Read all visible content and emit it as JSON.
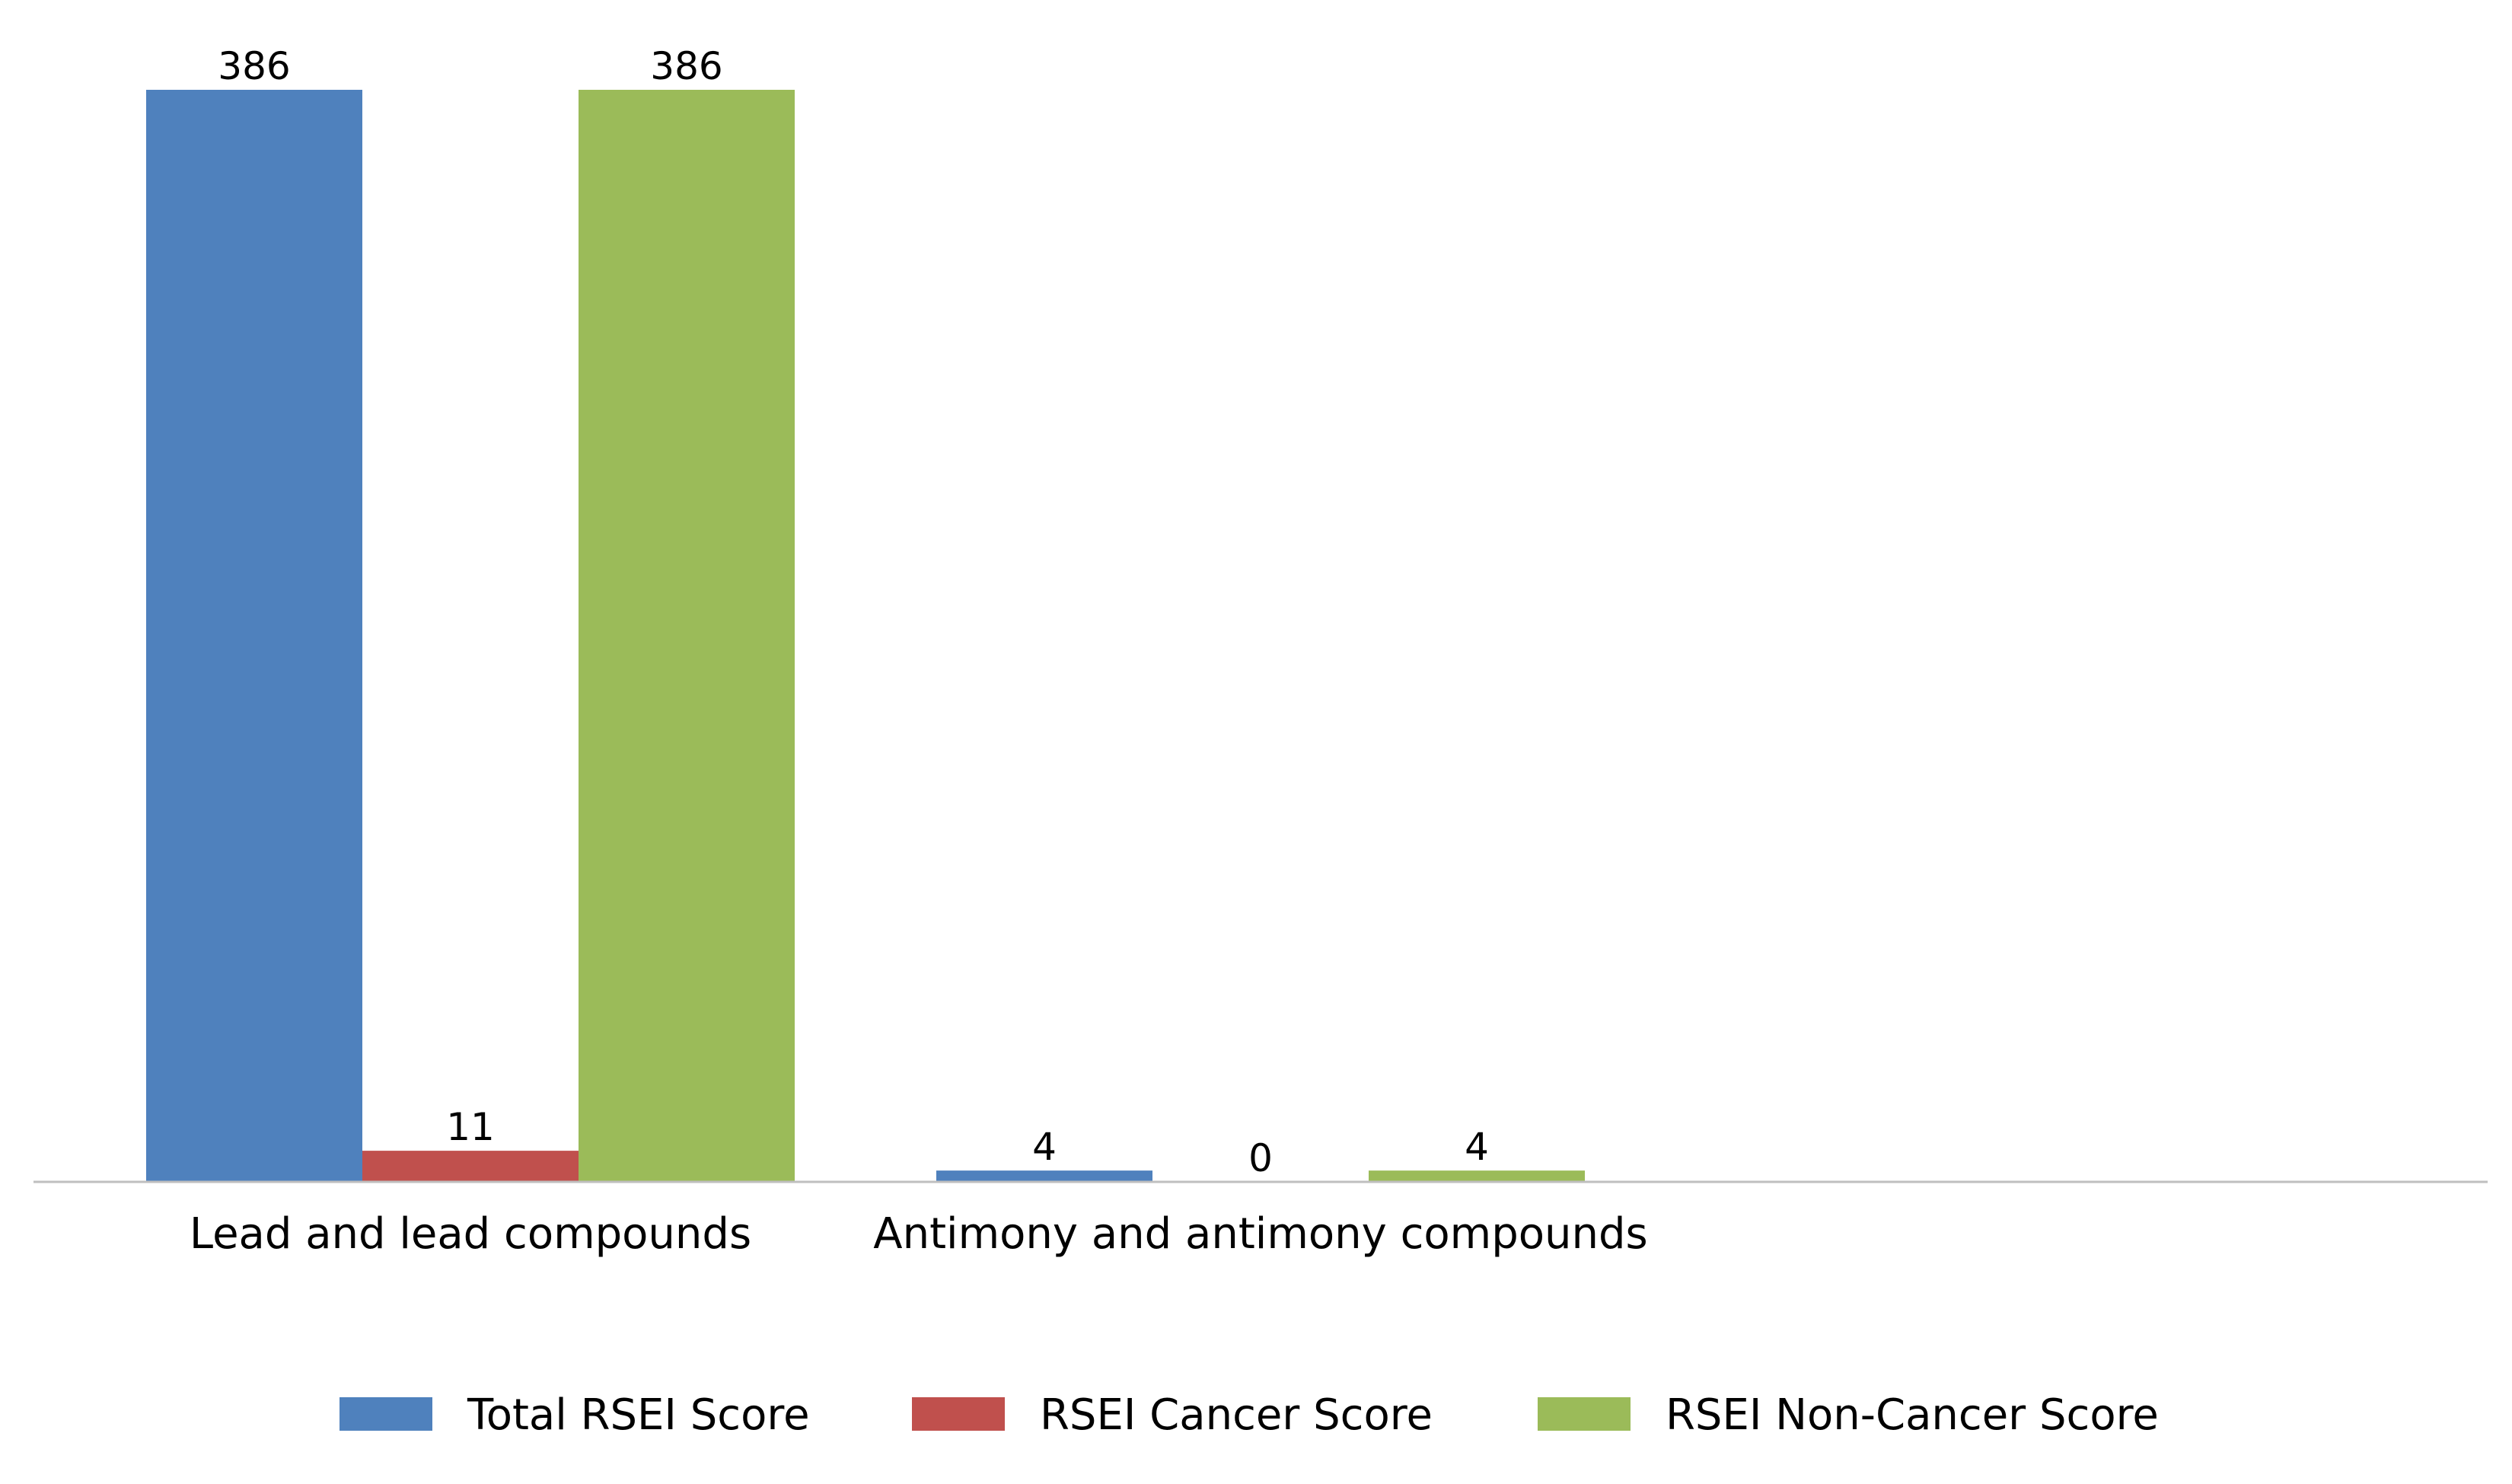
{
  "chart_data": {
    "type": "bar",
    "categories": [
      "Lead and lead compounds",
      "Antimony and antimony compounds"
    ],
    "series": [
      {
        "name": "Total RSEI Score",
        "values": [
          386,
          4
        ],
        "color": "#4F81BD"
      },
      {
        "name": "RSEI Cancer Score",
        "values": [
          11,
          0
        ],
        "color": "#C0504D"
      },
      {
        "name": "RSEI Non-Cancer Score",
        "values": [
          386,
          4
        ],
        "color": "#9BBB59"
      }
    ],
    "ylim": [
      0,
      386
    ],
    "grid": false,
    "legend": "bottom-center",
    "axis_color": "#BFBFBF"
  }
}
